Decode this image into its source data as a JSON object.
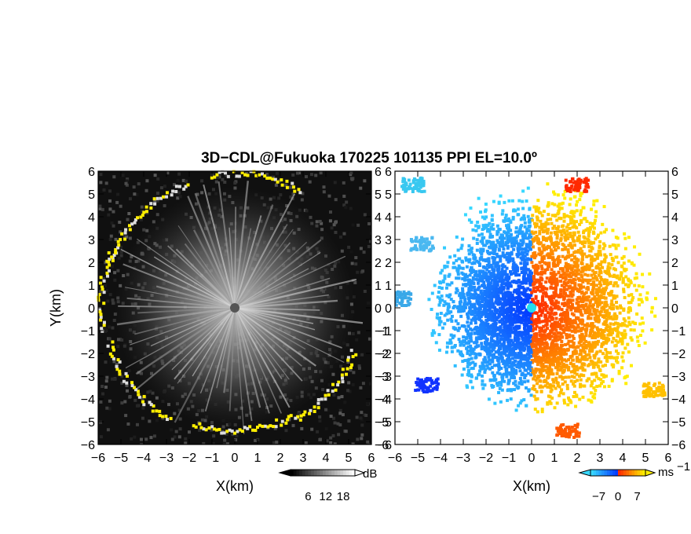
{
  "title": "3D−CDL@Fukuoka 170225 101135 PPI EL=10.0º",
  "chart_data": [
    {
      "type": "heatmap",
      "panel": "left",
      "quantity_unit": "dB",
      "xlabel": "X(km)",
      "ylabel": "Y(km)",
      "xlim": [
        -6,
        6
      ],
      "ylim": [
        -6,
        6
      ],
      "x_ticks": [
        "−6",
        "−5",
        "−4",
        "−3",
        "−2",
        "−1",
        "0",
        "1",
        "2",
        "3",
        "4",
        "5",
        "6"
      ],
      "y_ticks": [
        "6",
        "5",
        "4",
        "3",
        "2",
        "1",
        "0",
        "−1",
        "−2",
        "−3",
        "−4",
        "−5",
        "−6"
      ],
      "colorbar": {
        "ticks": [
          "6",
          "12",
          "18"
        ],
        "values": [
          6,
          12,
          18
        ],
        "range": [
          0,
          22
        ],
        "unit": "dB",
        "colors": [
          "#000000",
          "#ffffff"
        ]
      },
      "annotation": "radar site marker at (0, 0)"
    },
    {
      "type": "heatmap",
      "panel": "right",
      "quantity_unit": "ms⁻¹",
      "xlabel": "X(km)",
      "ylabel": "",
      "xlim": [
        -6,
        6
      ],
      "ylim": [
        -6,
        6
      ],
      "x_ticks": [
        "−6",
        "−5",
        "−4",
        "−3",
        "−2",
        "−1",
        "0",
        "1",
        "2",
        "3",
        "4",
        "5",
        "6"
      ],
      "y_ticks": [
        "6",
        "5",
        "4",
        "3",
        "2",
        "1",
        "0",
        "−1",
        "−2",
        "−3",
        "−4",
        "−5",
        "−6"
      ],
      "colorbar": {
        "ticks": [
          "−7",
          "0",
          "7"
        ],
        "values": [
          -7,
          0,
          7
        ],
        "range": [
          -10,
          10
        ],
        "unit": "ms",
        "unit_exponent": "−1",
        "colors": [
          "#38d8ff",
          "#0033ff",
          "#ff2200",
          "#ffee00"
        ]
      },
      "annotation": "radar site marker at (0, 0)"
    }
  ],
  "colors": {
    "site_left": "#555555",
    "site_right": "#22ddee",
    "edge_highlight": "#ffee00"
  }
}
